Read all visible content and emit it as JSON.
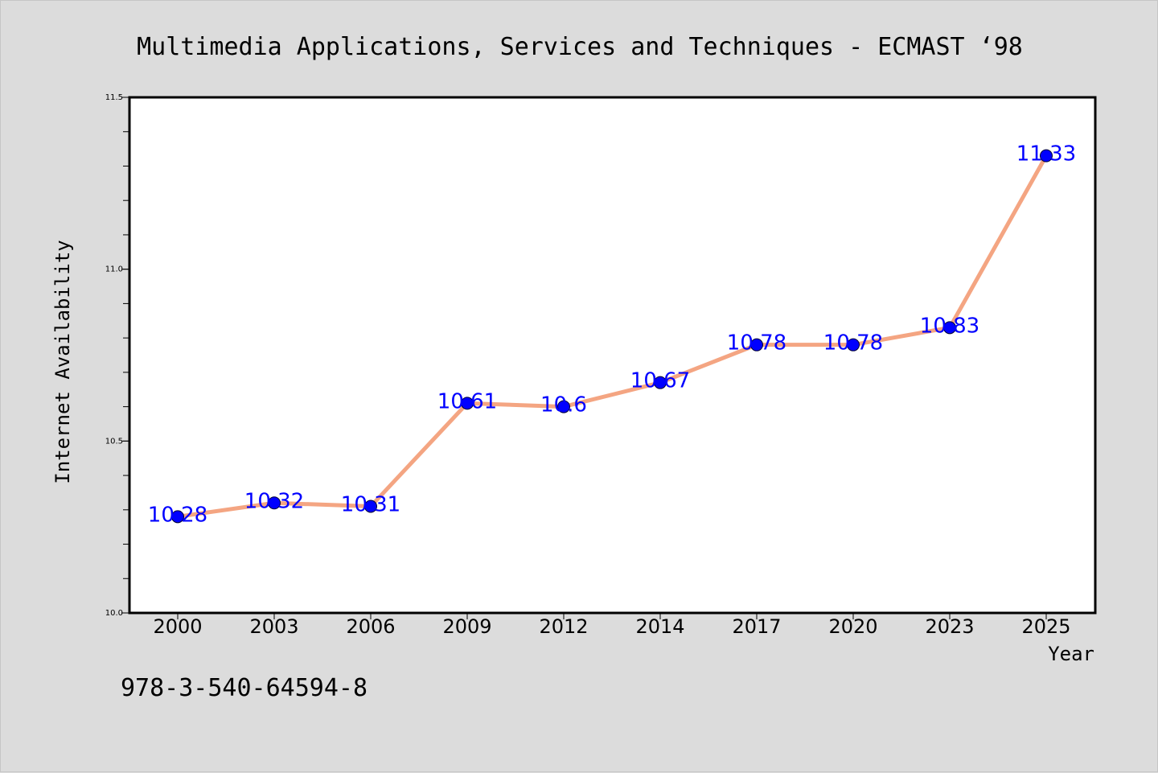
{
  "chart_data": {
    "type": "line",
    "title": "Multimedia Applications, Services and Techniques - ECMAST ‘98",
    "xlabel": "Year",
    "ylabel": "Internet Availability",
    "categories": [
      "2000",
      "2003",
      "2006",
      "2009",
      "2012",
      "2014",
      "2017",
      "2020",
      "2023",
      "2025"
    ],
    "series": [
      {
        "values": [
          10.28,
          10.32,
          10.31,
          10.61,
          10.6,
          10.67,
          10.78,
          10.78,
          10.83,
          11.33
        ]
      }
    ],
    "data_labels": [
      "10.28",
      "10.32",
      "10.31",
      "10.61",
      "10.6",
      "10.67",
      "10.78",
      "10.78",
      "10.83",
      "11.33"
    ],
    "ylim": [
      10.0,
      11.5
    ],
    "y_ticks": [
      "10.0",
      "10.5",
      "11.0",
      "11.5"
    ],
    "grid": false,
    "legend": "none",
    "colors": {
      "line": "#f4a582",
      "marker": "#0000ff",
      "label": "#0000ff",
      "background": "#dcdcdc",
      "plot_background": "#ffffff"
    }
  },
  "footnote": "978-3-540-64594-8"
}
